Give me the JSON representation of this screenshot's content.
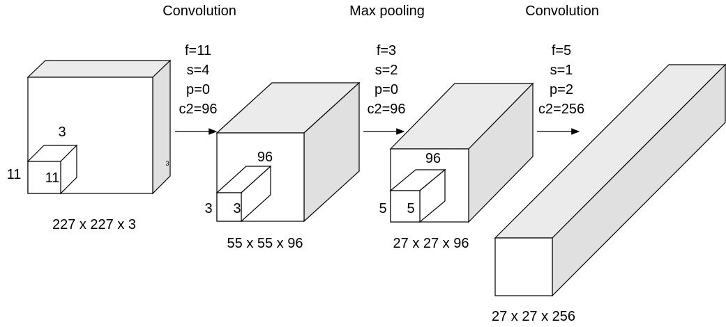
{
  "stages": [
    {
      "title": "Convolution",
      "params": [
        "f=11",
        "s=4",
        "p=0",
        "c2=96"
      ]
    },
    {
      "title": "Max pooling",
      "params": [
        "f=3",
        "s=2",
        "p=0",
        "c2=96"
      ]
    },
    {
      "title": "Convolution",
      "params": [
        "f=5",
        "s=1",
        "p=2",
        "c2=256"
      ]
    }
  ],
  "volumes": [
    {
      "dims": "227 x 227 x 3",
      "kernel": {
        "top": "3",
        "left": "11",
        "front": "11"
      },
      "side_note": "3"
    },
    {
      "dims": "55 x 55 x 96",
      "kernel": {
        "top": "96",
        "left": "3",
        "front": "3"
      }
    },
    {
      "dims": "27 x 27 x 96",
      "kernel": {
        "top": "96",
        "left": "5",
        "front": "5"
      }
    },
    {
      "dims": "27 x 27 x 256"
    }
  ]
}
